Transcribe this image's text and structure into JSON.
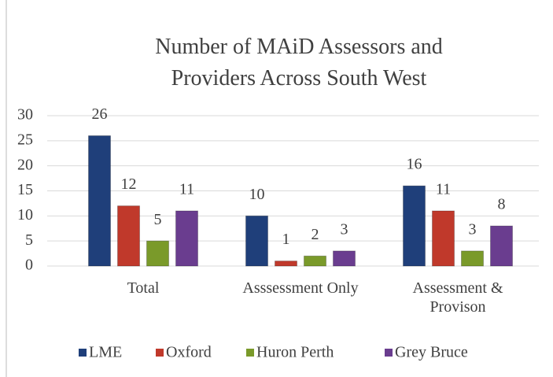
{
  "chart_data": {
    "type": "bar",
    "title": "Number of MAiD Assessors and Providers Across South West",
    "categories": [
      "Total",
      "Asssessment Only",
      "Assessment & Provison"
    ],
    "series": [
      {
        "name": "LME",
        "color": "#1f3f7a",
        "values": [
          26,
          10,
          16
        ]
      },
      {
        "name": "Oxford",
        "color": "#c0392b",
        "values": [
          12,
          1,
          11
        ]
      },
      {
        "name": "Huron Perth",
        "color": "#7a9a2a",
        "values": [
          5,
          2,
          3
        ]
      },
      {
        "name": "Grey Bruce",
        "color": "#6a3d8f",
        "values": [
          11,
          3,
          8
        ]
      }
    ],
    "ylim": [
      0,
      30
    ],
    "yticks": [
      0,
      5,
      10,
      15,
      20,
      25,
      30
    ],
    "grid": true,
    "legend": "bottom"
  }
}
